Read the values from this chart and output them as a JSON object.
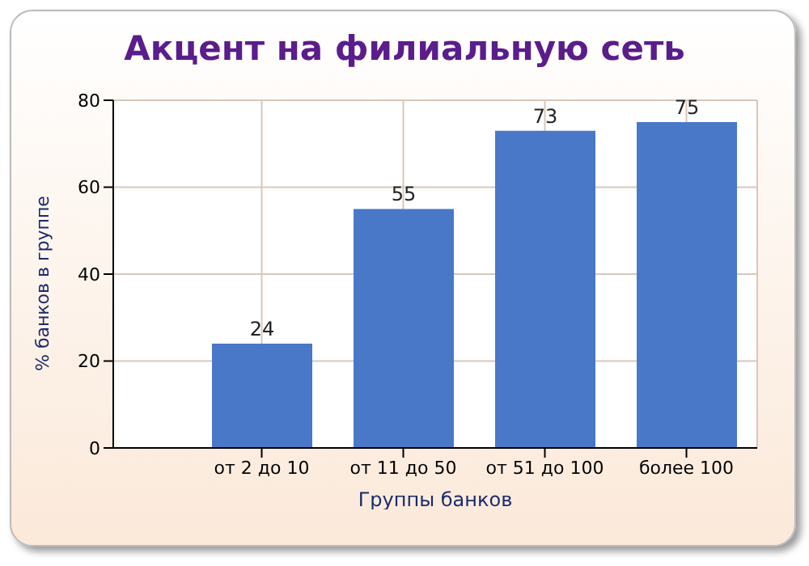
{
  "chart_data": {
    "type": "bar",
    "title": "Акцент на филиальную сеть",
    "xlabel": "Группы банков",
    "ylabel": "% банков в группе",
    "categories": [
      "от 2 до 10",
      "от 11 до 50",
      "от 51 до 100",
      "более 100"
    ],
    "values": [
      24,
      55,
      73,
      75
    ],
    "color": "#4a78c8",
    "data_labels": true,
    "ylim": [
      0,
      80
    ],
    "yticks": [
      0,
      20,
      40,
      60,
      80
    ],
    "grid": true
  }
}
